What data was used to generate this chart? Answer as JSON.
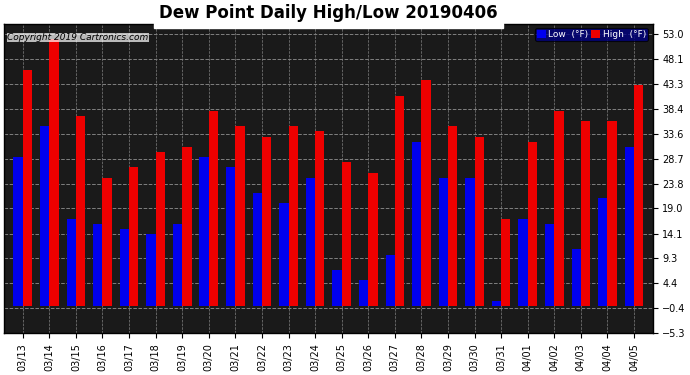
{
  "title": "Dew Point Daily High/Low 20190406",
  "copyright": "Copyright 2019 Cartronics.com",
  "legend_low": "Low  (°F)",
  "legend_high": "High  (°F)",
  "dates": [
    "03/13",
    "03/14",
    "03/15",
    "03/16",
    "03/17",
    "03/18",
    "03/19",
    "03/20",
    "03/21",
    "03/22",
    "03/23",
    "03/24",
    "03/25",
    "03/26",
    "03/27",
    "03/28",
    "03/29",
    "03/30",
    "03/31",
    "04/01",
    "04/02",
    "04/03",
    "04/04",
    "04/05"
  ],
  "low_values": [
    29,
    35,
    17,
    16,
    15,
    14,
    16,
    29,
    27,
    22,
    20,
    25,
    7,
    5,
    10,
    32,
    25,
    25,
    1,
    17,
    16,
    11,
    21,
    31
  ],
  "high_values": [
    46,
    52,
    37,
    25,
    27,
    30,
    31,
    38,
    35,
    33,
    35,
    34,
    28,
    26,
    41,
    44,
    35,
    33,
    17,
    32,
    38,
    36,
    36,
    43
  ],
  "low_color": "#0000ee",
  "high_color": "#ee0000",
  "bg_color": "#000000",
  "plot_bg_color": "#1a1a1a",
  "grid_color": "#808080",
  "ylim_min": -5.3,
  "ylim_max": 55.0,
  "yticks": [
    -5.3,
    -0.4,
    4.4,
    9.3,
    14.1,
    19.0,
    23.8,
    28.7,
    33.6,
    38.4,
    43.3,
    48.1,
    53.0
  ],
  "title_fontsize": 12,
  "tick_fontsize": 7,
  "bar_width": 0.35,
  "fig_width": 6.9,
  "fig_height": 3.75,
  "dpi": 100
}
